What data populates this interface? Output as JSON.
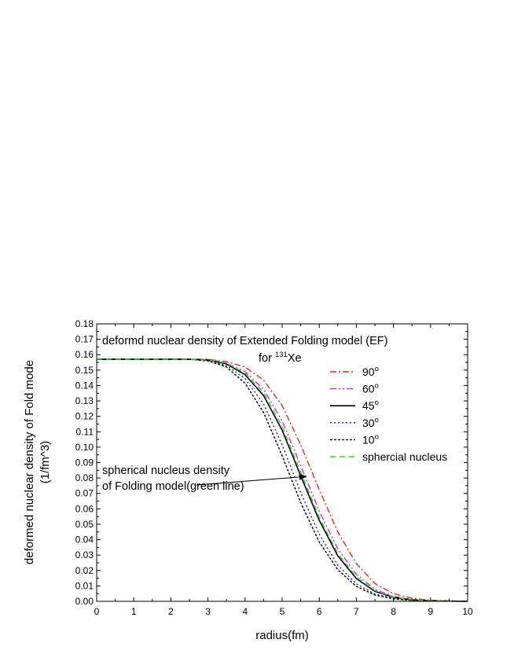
{
  "chart_data": {
    "type": "line",
    "title": "deformd nuclear density of Extended Folding model (EF)",
    "subtitle_prefix": "for ",
    "subtitle_sup": "131",
    "subtitle_suffix": "Xe",
    "xlabel": "radius(fm)",
    "ylabel_line1": "deformed nuclear density of Fold mode",
    "ylabel_line2": "(1/fm^3)",
    "xlim": [
      0,
      10
    ],
    "ylim": [
      0,
      0.18
    ],
    "x_ticks": [
      "0",
      "1",
      "2",
      "3",
      "4",
      "5",
      "6",
      "7",
      "8",
      "9",
      "10"
    ],
    "y_ticks": [
      "0.00",
      "0.01",
      "0.02",
      "0.03",
      "0.04",
      "0.05",
      "0.06",
      "0.07",
      "0.08",
      "0.09",
      "0.10",
      "0.11",
      "0.12",
      "0.13",
      "0.14",
      "0.15",
      "0.16",
      "0.17",
      "0.18"
    ],
    "grid": false,
    "legend_position": "top-right",
    "series": [
      {
        "name": "90",
        "name_sup": "o",
        "color": "#e8241c",
        "dash": "8,3,2,3",
        "x": [
          0,
          1,
          2,
          2.5,
          3,
          3.5,
          4,
          4.5,
          5,
          5.5,
          6,
          6.5,
          7,
          7.5,
          8,
          8.5,
          9,
          10
        ],
        "y": [
          0.157,
          0.157,
          0.157,
          0.157,
          0.157,
          0.1555,
          0.152,
          0.1435,
          0.127,
          0.1015,
          0.0725,
          0.045,
          0.0245,
          0.0115,
          0.005,
          0.002,
          0.0007,
          0.0
        ]
      },
      {
        "name": "60",
        "name_sup": "o",
        "color": "#e020e0",
        "dash": "8,3,2,3,2,3",
        "x": [
          0,
          1,
          2,
          2.5,
          3,
          3.5,
          4,
          4.5,
          5,
          5.5,
          6,
          6.5,
          7,
          7.5,
          8,
          8.5,
          9,
          10
        ],
        "y": [
          0.157,
          0.157,
          0.157,
          0.157,
          0.157,
          0.1545,
          0.149,
          0.1375,
          0.117,
          0.088,
          0.0585,
          0.034,
          0.0175,
          0.0078,
          0.0032,
          0.0012,
          0.0004,
          0.0
        ]
      },
      {
        "name": "45",
        "name_sup": "o",
        "color": "#000000",
        "dash": "",
        "x": [
          0,
          1,
          2,
          2.5,
          3,
          3.5,
          4,
          4.5,
          5,
          5.5,
          6,
          6.5,
          7,
          7.5,
          8,
          8.5,
          9,
          10
        ],
        "y": [
          0.157,
          0.157,
          0.157,
          0.157,
          0.1565,
          0.154,
          0.147,
          0.1335,
          0.111,
          0.0815,
          0.0525,
          0.0295,
          0.0148,
          0.0065,
          0.0026,
          0.001,
          0.0003,
          0.0
        ]
      },
      {
        "name": "30",
        "name_sup": "o",
        "color": "#1a1aa0",
        "dash": "2,3",
        "x": [
          0,
          1,
          2,
          2.5,
          3,
          3.5,
          4,
          4.5,
          5,
          5.5,
          6,
          6.5,
          7,
          7.5,
          8,
          8.5,
          9,
          10
        ],
        "y": [
          0.157,
          0.157,
          0.157,
          0.157,
          0.1563,
          0.153,
          0.1445,
          0.128,
          0.1015,
          0.0705,
          0.0435,
          0.0235,
          0.0113,
          0.0048,
          0.0019,
          0.0007,
          0.0002,
          0.0
        ]
      },
      {
        "name": "10",
        "name_sup": "o",
        "color": "#000000",
        "dash": "3,2",
        "x": [
          0,
          1,
          2,
          2.5,
          3,
          3.5,
          4,
          4.5,
          5,
          5.5,
          6,
          6.5,
          7,
          7.5,
          8,
          8.5,
          9,
          10
        ],
        "y": [
          0.157,
          0.157,
          0.157,
          0.157,
          0.156,
          0.152,
          0.1415,
          0.1225,
          0.0945,
          0.064,
          0.0385,
          0.0205,
          0.0097,
          0.0041,
          0.0016,
          0.0006,
          0.0002,
          0.0
        ]
      },
      {
        "name": "sphercial nucleus",
        "name_sup": "",
        "color": "#22dd22",
        "dash": "7,5",
        "x": [
          0,
          1,
          2,
          2.5,
          3,
          3.5,
          4,
          4.5,
          5,
          5.5,
          6,
          6.5,
          7,
          7.5,
          8,
          8.5,
          9,
          10
        ],
        "y": [
          0.157,
          0.157,
          0.157,
          0.157,
          0.1565,
          0.1545,
          0.148,
          0.1355,
          0.1135,
          0.084,
          0.0545,
          0.031,
          0.0157,
          0.007,
          0.0028,
          0.001,
          0.0003,
          0.0
        ]
      }
    ],
    "annotation": {
      "line1": "spherical nucleus density",
      "line2": "of Folding model(green line)",
      "arrow_to": [
        5.65,
        0.081
      ]
    }
  }
}
